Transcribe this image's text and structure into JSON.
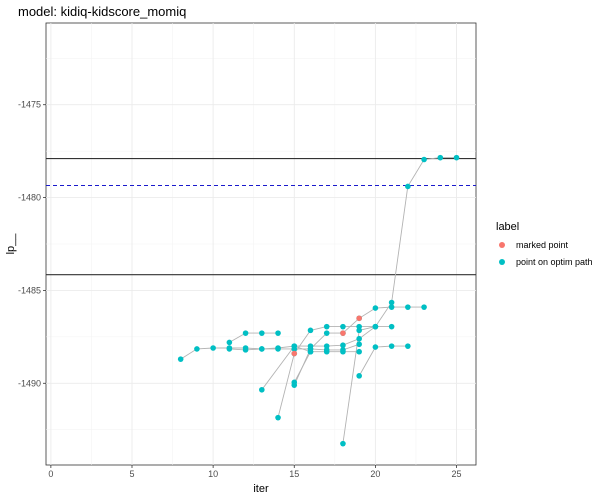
{
  "chart_data": {
    "type": "scatter",
    "title": "model: kidiq-kidscore_momiq",
    "xlabel": "iter",
    "ylabel": "lp__",
    "xlim": [
      -0.3,
      26.2
    ],
    "ylim": [
      -1494.4,
      -1470.6
    ],
    "xticks": [
      0,
      5,
      10,
      15,
      20,
      25
    ],
    "yticks": [
      -1490,
      -1485,
      -1480,
      -1475
    ],
    "hlines": [
      {
        "y": -1477.9,
        "style": "solid",
        "color": "#333333"
      },
      {
        "y": -1479.35,
        "style": "dashed",
        "color": "#1a1acc"
      },
      {
        "y": -1484.15,
        "style": "solid",
        "color": "#333333"
      }
    ],
    "legend": {
      "title": "label",
      "position": "right",
      "entries": [
        {
          "label": "marked point",
          "color": "#f8766d"
        },
        {
          "label": "point on optim path",
          "color": "#00bfc4"
        }
      ]
    },
    "paths": [
      [
        [
          8,
          -1488.7
        ],
        [
          9,
          -1488.15
        ],
        [
          10,
          -1488.1
        ],
        [
          11,
          -1488.1
        ],
        [
          12,
          -1488.1
        ],
        [
          13,
          -1488.15
        ],
        [
          14,
          -1488.1
        ],
        [
          15,
          -1488.0
        ],
        [
          16,
          -1488.0
        ],
        [
          17,
          -1488.0
        ],
        [
          18,
          -1487.95
        ],
        [
          19,
          -1487.6
        ],
        [
          20,
          -1486.95
        ],
        [
          21,
          -1485.65
        ],
        [
          22,
          -1479.4
        ],
        [
          23,
          -1477.95
        ],
        [
          24,
          -1477.85
        ],
        [
          25,
          -1477.85
        ]
      ],
      [
        [
          11,
          -1487.8
        ],
        [
          12,
          -1487.3
        ],
        [
          13,
          -1487.3
        ],
        [
          14,
          -1487.3
        ]
      ],
      [
        [
          11,
          -1488.15
        ],
        [
          12,
          -1488.2
        ],
        [
          13,
          -1488.15
        ],
        [
          14,
          -1488.15
        ],
        [
          15,
          -1488.15
        ],
        [
          16,
          -1488.15
        ],
        [
          17,
          -1488.2
        ],
        [
          18,
          -1488.2
        ],
        [
          19,
          -1487.9
        ]
      ],
      [
        [
          13,
          -1490.35
        ],
        [
          15,
          -1488.0
        ],
        [
          16,
          -1488.3
        ],
        [
          17,
          -1488.3
        ],
        [
          18,
          -1488.3
        ],
        [
          19,
          -1488.3
        ]
      ],
      [
        [
          14,
          -1491.85
        ],
        [
          15,
          -1488.4
        ],
        [
          16,
          -1487.15
        ],
        [
          17,
          -1486.95
        ],
        [
          18,
          -1486.95
        ],
        [
          19,
          -1486.95
        ],
        [
          20,
          -1486.95
        ],
        [
          21,
          -1486.95
        ]
      ],
      [
        [
          15,
          -1490.1
        ],
        [
          16,
          -1488.15
        ],
        [
          17,
          -1487.3
        ],
        [
          18,
          -1487.3
        ],
        [
          19,
          -1486.5
        ],
        [
          20,
          -1485.95
        ],
        [
          21,
          -1485.9
        ],
        [
          22,
          -1485.9
        ],
        [
          23,
          -1485.9
        ]
      ],
      [
        [
          15,
          -1489.95
        ],
        [
          16,
          -1488.3
        ]
      ],
      [
        [
          18,
          -1493.25
        ],
        [
          19,
          -1487.15
        ],
        [
          20,
          -1486.95
        ]
      ],
      [
        [
          19,
          -1489.6
        ],
        [
          20,
          -1488.05
        ],
        [
          21,
          -1488.0
        ],
        [
          22,
          -1488.0
        ]
      ]
    ],
    "marked_points": [
      [
        15,
        -1488.4
      ],
      [
        18,
        -1487.3
      ],
      [
        19,
        -1486.5
      ]
    ]
  }
}
